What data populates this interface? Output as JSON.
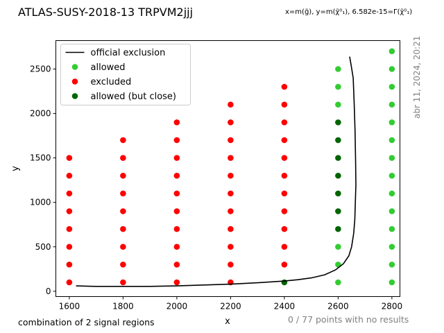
{
  "header": {
    "title": "ATLAS-SUSY-2018-13 TRPVM2jjj",
    "subtitle": "x=m(g̃), y=m(χ̃⁰₁), 6.582e-15=Γ(χ̃⁰₁)"
  },
  "side_note": "abr 11, 2024, 20:21",
  "footer": {
    "left": "combination of 2 signal regions",
    "right": "0 / 77 points with no results"
  },
  "colors": {
    "allowed": "#33cc33",
    "excluded": "#ff0000",
    "close": "#006400",
    "line": "#000000",
    "muted": "#808080"
  },
  "chart_data": {
    "type": "scatter",
    "xlabel": "x",
    "ylabel": "y",
    "xlim": [
      1550,
      2830
    ],
    "ylim": [
      -60,
      2820
    ],
    "xticks": [
      1600,
      1800,
      2000,
      2200,
      2400,
      2600,
      2800
    ],
    "yticks": [
      0,
      500,
      1000,
      1500,
      2000,
      2500
    ],
    "grid": false,
    "legend_position": "top-left",
    "legend": [
      {
        "label": "official exclusion",
        "kind": "line",
        "color": "#000000"
      },
      {
        "label": "allowed",
        "kind": "marker",
        "color": "#33cc33"
      },
      {
        "label": "excluded",
        "kind": "marker",
        "color": "#ff0000"
      },
      {
        "label": "allowed (but close)",
        "kind": "marker",
        "color": "#006400"
      }
    ],
    "series": [
      {
        "name": "excluded",
        "color": "#ff0000",
        "points": [
          [
            1600,
            100
          ],
          [
            1600,
            300
          ],
          [
            1600,
            500
          ],
          [
            1600,
            700
          ],
          [
            1600,
            900
          ],
          [
            1600,
            1100
          ],
          [
            1600,
            1300
          ],
          [
            1600,
            1500
          ],
          [
            1800,
            100
          ],
          [
            1800,
            300
          ],
          [
            1800,
            500
          ],
          [
            1800,
            700
          ],
          [
            1800,
            900
          ],
          [
            1800,
            1100
          ],
          [
            1800,
            1300
          ],
          [
            1800,
            1500
          ],
          [
            1800,
            1700
          ],
          [
            2000,
            100
          ],
          [
            2000,
            300
          ],
          [
            2000,
            500
          ],
          [
            2000,
            700
          ],
          [
            2000,
            900
          ],
          [
            2000,
            1100
          ],
          [
            2000,
            1300
          ],
          [
            2000,
            1500
          ],
          [
            2000,
            1700
          ],
          [
            2000,
            1900
          ],
          [
            2200,
            100
          ],
          [
            2200,
            300
          ],
          [
            2200,
            500
          ],
          [
            2200,
            700
          ],
          [
            2200,
            900
          ],
          [
            2200,
            1100
          ],
          [
            2200,
            1300
          ],
          [
            2200,
            1500
          ],
          [
            2200,
            1700
          ],
          [
            2200,
            1900
          ],
          [
            2200,
            2100
          ],
          [
            2400,
            300
          ],
          [
            2400,
            500
          ],
          [
            2400,
            700
          ],
          [
            2400,
            900
          ],
          [
            2400,
            1100
          ],
          [
            2400,
            1300
          ],
          [
            2400,
            1500
          ],
          [
            2400,
            1700
          ],
          [
            2400,
            1900
          ],
          [
            2400,
            2100
          ],
          [
            2400,
            2300
          ]
        ]
      },
      {
        "name": "allowed",
        "color": "#33cc33",
        "points": [
          [
            2600,
            100
          ],
          [
            2600,
            300
          ],
          [
            2600,
            500
          ],
          [
            2600,
            2100
          ],
          [
            2600,
            2300
          ],
          [
            2600,
            2500
          ],
          [
            2800,
            100
          ],
          [
            2800,
            300
          ],
          [
            2800,
            500
          ],
          [
            2800,
            700
          ],
          [
            2800,
            900
          ],
          [
            2800,
            1100
          ],
          [
            2800,
            1300
          ],
          [
            2800,
            1500
          ],
          [
            2800,
            1700
          ],
          [
            2800,
            1900
          ],
          [
            2800,
            2100
          ],
          [
            2800,
            2300
          ],
          [
            2800,
            2500
          ],
          [
            2800,
            2700
          ]
        ]
      },
      {
        "name": "allowed (but close)",
        "color": "#006400",
        "points": [
          [
            2400,
            100
          ],
          [
            2600,
            700
          ],
          [
            2600,
            900
          ],
          [
            2600,
            1100
          ],
          [
            2600,
            1300
          ],
          [
            2600,
            1500
          ],
          [
            2600,
            1700
          ],
          [
            2600,
            1900
          ]
        ]
      }
    ],
    "exclusion_line": {
      "name": "official exclusion",
      "color": "#000000",
      "points": [
        [
          1625,
          60
        ],
        [
          1700,
          55
        ],
        [
          1800,
          55
        ],
        [
          1900,
          55
        ],
        [
          2000,
          60
        ],
        [
          2100,
          70
        ],
        [
          2200,
          80
        ],
        [
          2300,
          95
        ],
        [
          2400,
          115
        ],
        [
          2450,
          130
        ],
        [
          2500,
          150
        ],
        [
          2550,
          185
        ],
        [
          2590,
          240
        ],
        [
          2620,
          310
        ],
        [
          2640,
          400
        ],
        [
          2650,
          500
        ],
        [
          2658,
          650
        ],
        [
          2662,
          800
        ],
        [
          2664,
          1000
        ],
        [
          2666,
          1200
        ],
        [
          2665,
          1450
        ],
        [
          2663,
          1800
        ],
        [
          2660,
          2100
        ],
        [
          2656,
          2400
        ],
        [
          2648,
          2550
        ],
        [
          2643,
          2640
        ]
      ]
    }
  }
}
